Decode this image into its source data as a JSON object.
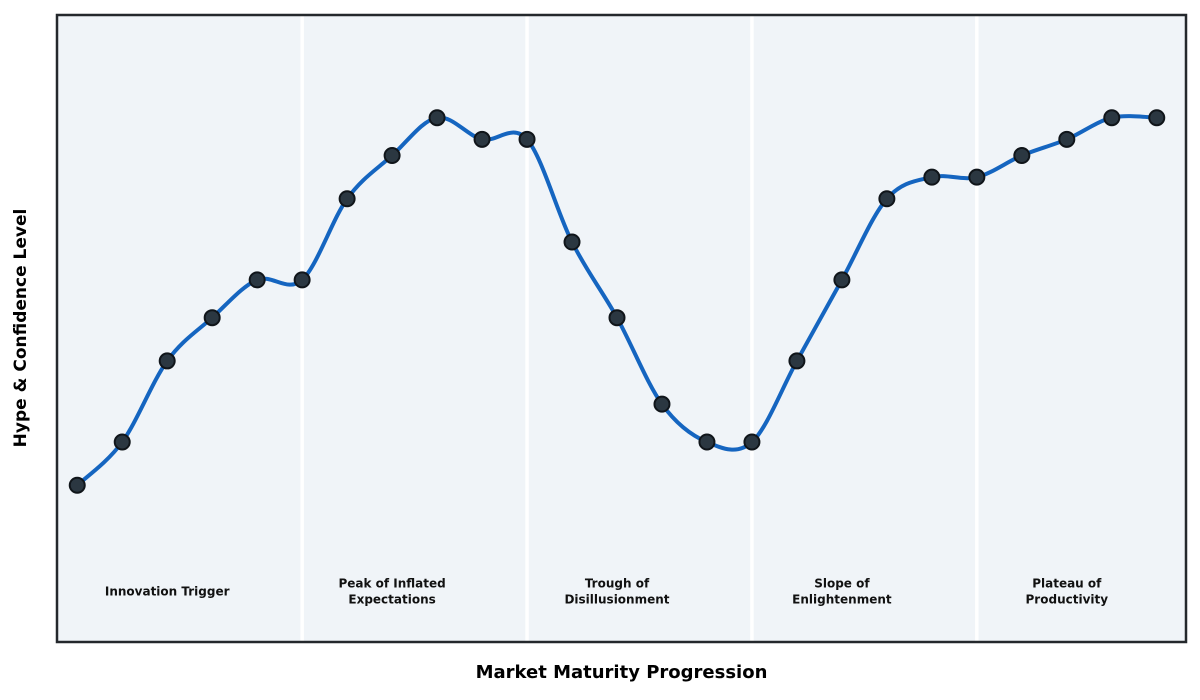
{
  "chart_data": {
    "type": "line",
    "title": "",
    "xlabel": "Market Maturity Progression",
    "ylabel": "Hype & Confidence Level",
    "x": [
      0,
      1,
      2,
      3,
      4,
      5,
      6,
      7,
      8,
      9,
      10,
      11,
      12,
      13,
      14,
      15,
      16,
      17,
      18,
      19,
      20,
      21,
      22,
      23,
      24
    ],
    "series": [
      {
        "name": "hype-confidence-curve",
        "values": [
          27,
          35,
          50,
          58,
          65,
          65,
          80,
          88,
          95,
          91,
          91,
          72,
          58,
          42,
          35,
          35,
          50,
          65,
          80,
          84,
          84,
          88,
          91,
          95,
          95
        ]
      }
    ],
    "xlim": [
      -0.45,
      24.65
    ],
    "ylim": [
      -2,
      114
    ],
    "grid": false,
    "legend": false,
    "smooth": true,
    "show_markers": true,
    "x_ticks": [],
    "y_ticks": [],
    "phase_boundaries_x": [
      5,
      10,
      15,
      20
    ],
    "phase_label_y": 7.3,
    "phases": [
      {
        "label": "Innovation Trigger",
        "lines": [
          "Innovation Trigger"
        ],
        "x": 2
      },
      {
        "label": "Peak of Inflated Expectations",
        "lines": [
          "Peak of Inflated",
          "Expectations"
        ],
        "x": 7
      },
      {
        "label": "Trough of Disillusionment",
        "lines": [
          "Trough of",
          "Disillusionment"
        ],
        "x": 12
      },
      {
        "label": "Slope of Enlightenment",
        "lines": [
          "Slope of",
          "Enlightenment"
        ],
        "x": 17
      },
      {
        "label": "Plateau of Productivity",
        "lines": [
          "Plateau of",
          "Productivity"
        ],
        "x": 22
      }
    ],
    "colors": {
      "line": "#1565c0",
      "marker_fill": "#2b3741",
      "marker_edge": "#10151a",
      "plot_background": "#f0f4f8",
      "figure_background": "#ffffff",
      "border": "#24282c",
      "separator": "#ffffff",
      "phase_label_text": "#111111"
    },
    "line_width": 4,
    "marker_diameter": 17
  }
}
